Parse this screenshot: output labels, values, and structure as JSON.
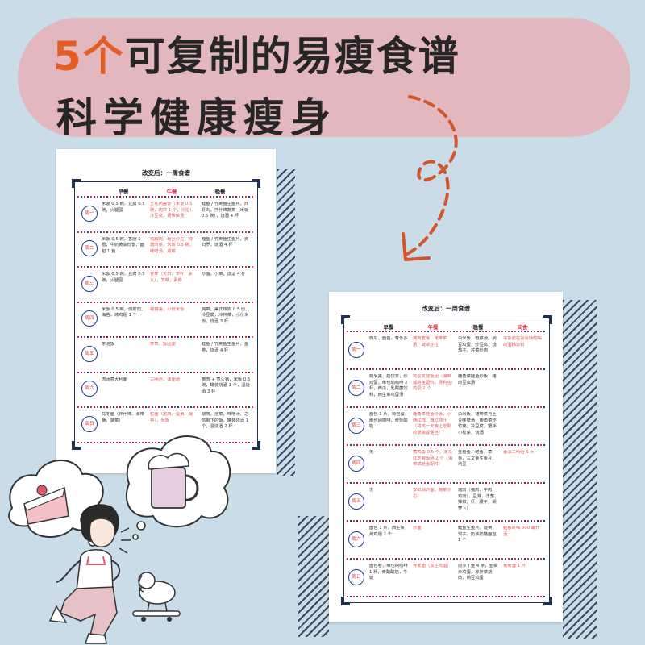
{
  "banner": {
    "title_highlight": "5个",
    "title_rest": "可复制的易瘦食谱",
    "subtitle": "科学健康瘦身"
  },
  "colors": {
    "background": "#c9dce8",
    "banner": "#e2b7bd",
    "highlight": "#e45e23",
    "accent_red": "#d9334a",
    "accent_blue": "#1f3a8a"
  },
  "icons": [
    "cake-icon",
    "beer-mug-icon",
    "running-person",
    "dog-on-skateboard"
  ],
  "sheet1": {
    "title": "改变后：一周食谱",
    "headers": [
      "早餐",
      "午餐",
      "晚餐"
    ],
    "rows": [
      {
        "day": "周一",
        "breakfast": "米饭 0.5 碗，豆腐 0.5 碗，火腿蛋",
        "lunch": "五花肉盖饭（米饭 0.5 碗，肉块 1 个，沙拉），冷豆腐，裙带菜汤",
        "dinner": "鲣鱼 / 竹荚鱼生鱼片，炸虾丸，拌什锦蔬菜（米饭 0.5 碗），烧酒 4 杯"
      },
      {
        "day": "周二",
        "breakfast": "米饭 0.5 碗，香肠 1 根，牛奶黄油炒饭，面包 1 包",
        "lunch": "鸡胸肉，粉丝沙拉，炖酱肉菜，米饭 0.5 碗，味噌汤，咸菜",
        "dinner": "鲣鱼 / 竹荚鱼生鱼片，天妇罗，烧酒 4 杯"
      },
      {
        "day": "周三",
        "breakfast": "米饭 0.5 碗，豆腐 0.5 碗，火腿蛋",
        "lunch": "荞麦（天妇、茶叶、素丸），羊菜，素菜",
        "dinner": "炒面，小菜，烧酒 4 杯"
      },
      {
        "day": "周四",
        "breakfast": "米饭 0.5 碗，你煎肉，海苔，烤鸡翅 1 个",
        "lunch": "猪排盖，小份米饭",
        "dinner": "炖菜，美式热狗 0.5 份，冷豆腐，冷拌菜，小份米饭，烧酒 3 杯"
      },
      {
        "day": "周五",
        "breakfast": "茶泡饭",
        "lunch": "寿司，饭团面",
        "dinner": "鲣鱼 / 竹荚鱼生鱼片，鱼卷，烧酒 4 杯"
      },
      {
        "day": "周六",
        "breakfast": "肉汤意大利面",
        "lunch": "三明治，沫面汤",
        "dinner": "蟹肉 + 煮火锅，米饭 0.5 碗，罐装烧酒 1 个，温烧酒 3 杯"
      },
      {
        "day": "周日",
        "breakfast": "乌冬面（炸什锦、海带梗、菠菜）",
        "lunch": "粒面（芝麻、蛋黄、海苔），米饭",
        "dinner": "烧肉，泡菜，味噌汤，之前剩下的饭，罐装烧酒 1 个，温烧酒 2 杯"
      }
    ]
  },
  "sheet2": {
    "title": "改变后：一周食谱",
    "headers": [
      "早餐",
      "午餐",
      "晚餐",
      "间食"
    ],
    "rows": [
      {
        "day": "周一",
        "breakfast": "西瓜，面包，寿乐多",
        "lunch": "烤肉套餐，裙带菜汤，蔬菜沙拉",
        "dinner": "白米饭，根菜汤，纳豆鸡蛋，炒豆腐，烧茄子，芹菜炒肉",
        "snack": "午饭前在宴会场吃喝的酒精饮料"
      },
      {
        "day": "周二",
        "breakfast": "糙米粥，奶饮茶，炒鸡蛋，维也纳咖啡 2 杯，西瓜，乳酸菌饮料，西生菜鸡蛋汤",
        "lunch": "鸡蛋叉烧饭团（海带或鲑鱼配料，便利店）鸡蛋 2 个",
        "dinner": "鹿角菜鲑鱼炒饭，猪肉豆腐汤",
        "snack": ""
      },
      {
        "day": "周三",
        "breakfast": "面包 1 片，荷包蛋，维也纳咖啡，奇妙酸奶",
        "lunch": "鹿角菜鲑鱼炒饭，小西红柿，西红柿汁（将鸡一天晚上吃剩的饭做成便当）",
        "dinner": "白米饭，裙带菜与土豆味噌汤，鹿角菜炸竹荚，冷豆腐，蟹拌小松菜，烧酒",
        "snack": ""
      },
      {
        "day": "周四",
        "breakfast": "无",
        "lunch": "煮鸡蛋 0.5 个，海头红芝麻饭团 2 个（海带或鲑鱼配料）",
        "dinner": "金枪鱼，鲑鱼，章鱼，三文鱼生鱼片，纳豆",
        "snack": "薯油三明治 3 片"
      },
      {
        "day": "周五",
        "breakfast": "无",
        "lunch": "安田油炸面，蔬菜沙拉",
        "dinner": "烤肉（猪肉，牛肉，鸡肉），豆芽，洋葱，辣椒，虾，腰子，胡萝卜）",
        "snack": ""
      },
      {
        "day": "周六",
        "breakfast": "面包 1 片，西生菜，烤鸡翅 2 个",
        "lunch": "炒面",
        "dinner": "鲣鱼生鱼片，烧卖，饺子，奶油奶酪面包 1 个",
        "snack": "胶餐时喝 500 毫升酒"
      },
      {
        "day": "周日",
        "breakfast": "面包卷，维也纳咖啡 1 杯，奇酪酸奶，牛奶",
        "lunch": "荞麦面（加生鸡蛋）",
        "dinner": "煎沙丁鱼 4 条，韭菜炒鸡蛋，凉拌菜烧肉，纳豆鸡蛋",
        "snack": "葡萄酒 1 杯"
      }
    ]
  }
}
